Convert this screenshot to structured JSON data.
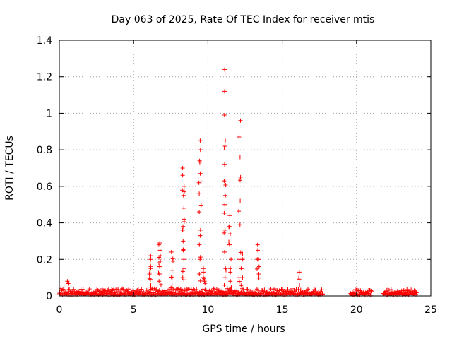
{
  "chart_data": {
    "type": "scatter",
    "title": "Day 063 of 2025, Rate Of TEC Index for receiver mtis",
    "xlabel": "GPS time / hours",
    "ylabel": "ROTI / TECUs",
    "xlim": [
      0,
      25
    ],
    "ylim": [
      0,
      1.4
    ],
    "x_ticks": [
      0,
      5,
      10,
      15,
      20,
      25
    ],
    "x_tick_labels": [
      "0",
      "5",
      "10",
      "15",
      "20",
      "25"
    ],
    "y_ticks": [
      0,
      0.2,
      0.4,
      0.6,
      0.8,
      1.0,
      1.2,
      1.4
    ],
    "y_tick_labels": [
      "0",
      "0.2",
      "0.4",
      "0.6",
      "0.8",
      "1",
      "1.2",
      "1.4"
    ],
    "grid": true,
    "marker": "+",
    "color": "#ff0000",
    "baseline_segments": [
      {
        "x_start": 0.0,
        "x_end": 17.7,
        "typical_max": 0.04
      },
      {
        "x_start": 19.6,
        "x_end": 21.0,
        "typical_max": 0.035
      },
      {
        "x_start": 21.8,
        "x_end": 24.0,
        "typical_max": 0.035
      }
    ],
    "spikes": [
      {
        "x": 6.1,
        "values": [
          0.06,
          0.09,
          0.12,
          0.15,
          0.18,
          0.2,
          0.22
        ]
      },
      {
        "x": 6.75,
        "values": [
          0.08,
          0.12,
          0.16,
          0.19,
          0.22,
          0.25,
          0.28,
          0.29
        ]
      },
      {
        "x": 7.6,
        "values": [
          0.06,
          0.1,
          0.14,
          0.19,
          0.24
        ]
      },
      {
        "x": 8.35,
        "values": [
          0.1,
          0.15,
          0.2,
          0.25,
          0.3,
          0.36,
          0.42,
          0.48,
          0.55,
          0.57,
          0.6,
          0.66,
          0.7
        ]
      },
      {
        "x": 9.45,
        "values": [
          0.12,
          0.2,
          0.28,
          0.36,
          0.46,
          0.56,
          0.62,
          0.67,
          0.74,
          0.8,
          0.85
        ]
      },
      {
        "x": 9.75,
        "values": [
          0.08,
          0.1,
          0.13,
          0.15
        ]
      },
      {
        "x": 11.15,
        "values": [
          0.1,
          0.15,
          0.24,
          0.36,
          0.5,
          0.55,
          0.63,
          0.72,
          0.82,
          0.99,
          1.12,
          1.22,
          1.24
        ]
      },
      {
        "x": 11.5,
        "values": [
          0.08,
          0.13,
          0.2,
          0.28,
          0.34,
          0.38,
          0.44
        ]
      },
      {
        "x": 12.15,
        "values": [
          0.1,
          0.2,
          0.39,
          0.52,
          0.65,
          0.76,
          0.87,
          0.96
        ]
      },
      {
        "x": 12.3,
        "values": [
          0.1,
          0.15,
          0.2,
          0.23
        ]
      },
      {
        "x": 13.4,
        "values": [
          0.12,
          0.16,
          0.2,
          0.25,
          0.28
        ]
      },
      {
        "x": 16.2,
        "values": [
          0.06,
          0.09,
          0.13
        ]
      },
      {
        "x": 0.55,
        "values": [
          0.08
        ]
      }
    ]
  }
}
